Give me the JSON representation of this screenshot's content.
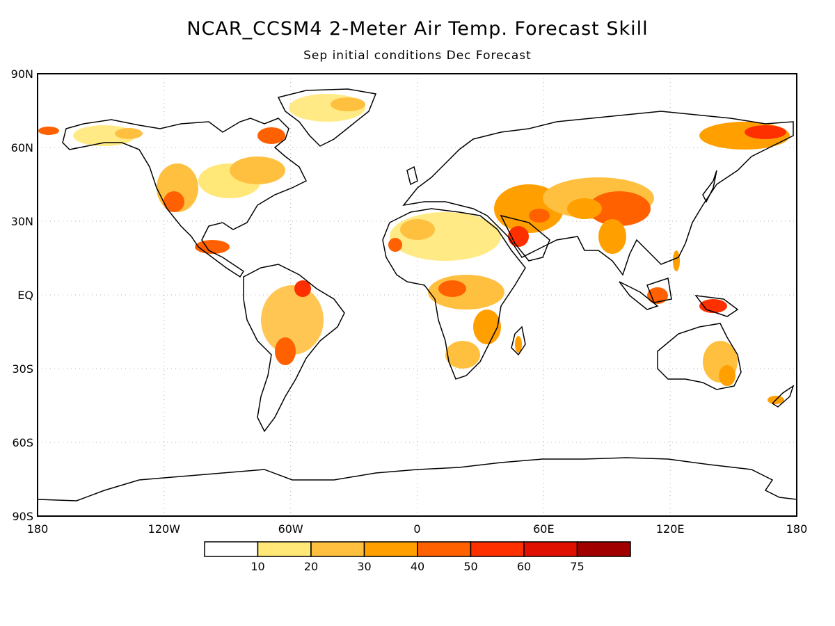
{
  "title": "NCAR_CCSM4 2-Meter Air Temp. Forecast Skill",
  "subtitle": "Sep initial conditions  Dec Forecast",
  "lat_ticks": [
    "90N",
    "60N",
    "30N",
    "EQ",
    "30S",
    "60S",
    "90S"
  ],
  "lon_ticks": [
    "180",
    "120W",
    "60W",
    "0",
    "60E",
    "120E",
    "180"
  ],
  "colorbar": {
    "colors": [
      "#ffffff",
      "#ffe878",
      "#ffc040",
      "#ffa000",
      "#ff6000",
      "#ff3000",
      "#e01000",
      "#a00000"
    ],
    "labels": [
      "10",
      "20",
      "30",
      "40",
      "50",
      "60",
      "75"
    ]
  }
}
